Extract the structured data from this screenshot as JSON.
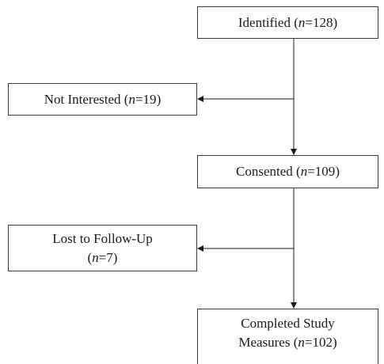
{
  "flowchart": {
    "identified": {
      "label": "Identified",
      "n_label": "n",
      "count": "=128"
    },
    "not_interested": {
      "label": "Not Interested",
      "n_label": "n",
      "count": "=19"
    },
    "consented": {
      "label": "Consented",
      "n_label": "n",
      "count": "=109"
    },
    "lost_to_follow_up": {
      "label": "Lost to Follow-Up",
      "n_label": "n",
      "count": "=7"
    },
    "completed": {
      "label_line1": "Completed Study",
      "label_line2": "Measures",
      "n_label": "n",
      "count": "=102"
    }
  }
}
